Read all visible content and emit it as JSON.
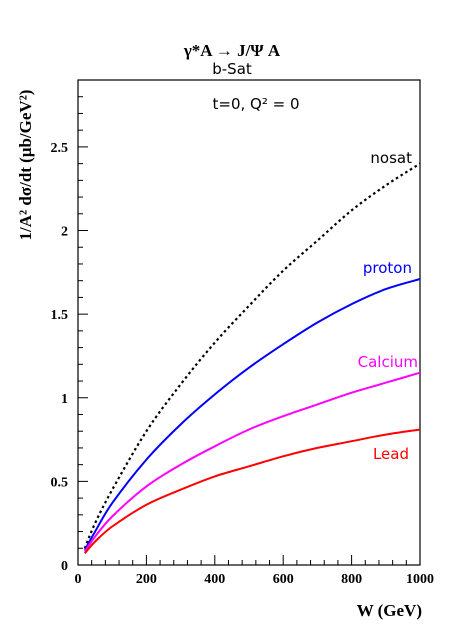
{
  "chart_data": {
    "type": "line",
    "title_lines": [
      "γ*A  →  J/Ψ A",
      "b-Sat"
    ],
    "annotation": "t=0,  Q² = 0",
    "xlabel": "W  (GeV)",
    "ylabel": "1/A² dσ/dt  (μb/GeV²)",
    "xlim": [
      0,
      1000
    ],
    "ylim": [
      0,
      2.9
    ],
    "x_ticks": [
      0,
      200,
      400,
      600,
      800,
      1000
    ],
    "x_tick_labels": [
      "0",
      "200",
      "400",
      "600",
      "800",
      "1000"
    ],
    "y_ticks": [
      0,
      0.5,
      1,
      1.5,
      2,
      2.5
    ],
    "y_tick_labels": [
      "0",
      "0.5",
      "1",
      "1.5",
      "2",
      "2.5"
    ],
    "grid": false,
    "legend": "inline labels at right end of curves",
    "series": [
      {
        "name": "nosat",
        "color": "#000000",
        "style": "dotted",
        "x": [
          20,
          50,
          100,
          200,
          300,
          400,
          500,
          600,
          700,
          800,
          900,
          1000
        ],
        "y": [
          0.1,
          0.25,
          0.45,
          0.8,
          1.08,
          1.33,
          1.55,
          1.76,
          1.94,
          2.12,
          2.27,
          2.4
        ]
      },
      {
        "name": "proton",
        "color": "#0000ff",
        "style": "solid",
        "x": [
          20,
          50,
          100,
          200,
          300,
          400,
          500,
          600,
          700,
          800,
          900,
          1000
        ],
        "y": [
          0.09,
          0.2,
          0.37,
          0.63,
          0.84,
          1.02,
          1.18,
          1.32,
          1.45,
          1.56,
          1.65,
          1.71
        ]
      },
      {
        "name": "Calcium",
        "color": "#ff00ff",
        "style": "solid",
        "x": [
          20,
          50,
          100,
          200,
          300,
          400,
          500,
          600,
          700,
          800,
          900,
          1000
        ],
        "y": [
          0.08,
          0.17,
          0.29,
          0.47,
          0.6,
          0.71,
          0.81,
          0.89,
          0.96,
          1.03,
          1.09,
          1.15
        ]
      },
      {
        "name": "Lead",
        "color": "#ff0000",
        "style": "solid",
        "x": [
          20,
          50,
          100,
          200,
          300,
          400,
          500,
          600,
          700,
          800,
          900,
          1000
        ],
        "y": [
          0.07,
          0.14,
          0.23,
          0.36,
          0.45,
          0.53,
          0.59,
          0.65,
          0.7,
          0.74,
          0.78,
          0.81
        ]
      }
    ]
  }
}
